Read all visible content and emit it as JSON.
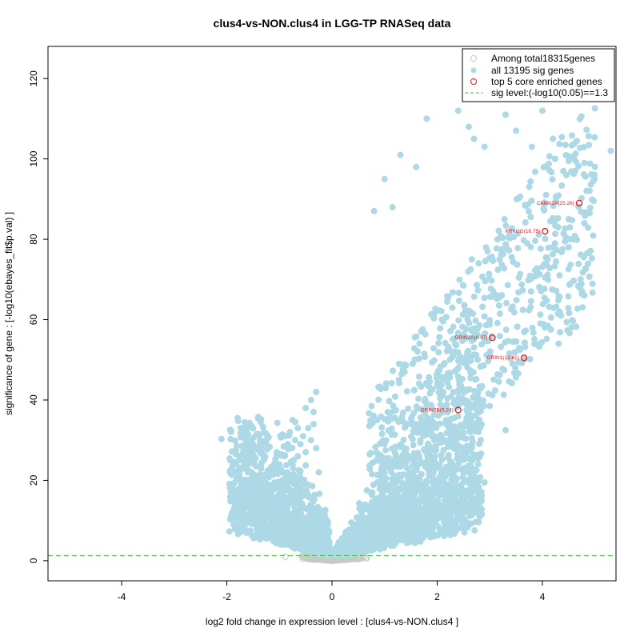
{
  "chart_data": {
    "type": "scatter",
    "title": "clus4-vs-NON.clus4 in LGG-TP RNASeq data",
    "xlabel": "log2 fold change in expression level : [clus4-vs-NON.clus4 ]",
    "ylabel": "significance of gene : [-log10(ebayes_fit$p.val) ]",
    "xlim": [
      -5.4,
      5.4
    ],
    "ylim": [
      -5,
      128
    ],
    "xticks": [
      -4,
      -2,
      0,
      2,
      4
    ],
    "yticks": [
      0,
      20,
      40,
      60,
      80,
      100,
      120
    ],
    "grid": false,
    "legend_position": "top-right",
    "legend": [
      {
        "label": "Among total18315genes",
        "marker": "open-circle",
        "color": "#c8c8c8"
      },
      {
        "label": "all 13195 sig genes",
        "marker": "filled-circle",
        "color": "#add8e6"
      },
      {
        "label": "top 5 core enriched genes",
        "marker": "open-circle",
        "color": "#e41a1c"
      },
      {
        "label": "sig level:(-log10(0.05)==1.3",
        "marker": "dashed-line",
        "color": "#33cc33"
      }
    ],
    "sig_level": 1.3,
    "colors": {
      "nonsig": "#c8c8c8",
      "sig": "#add8e6",
      "top": "#e41a1c",
      "threshold": "#33cc33"
    },
    "top_genes": [
      {
        "label": "CAMK2A(25.26)",
        "x": 4.7,
        "y": 89
      },
      {
        "label": "PRKCG(16.75)",
        "x": 4.05,
        "y": 82
      },
      {
        "label": "GRIN2A(6.37)",
        "x": 3.05,
        "y": 55.5
      },
      {
        "label": "GRIN1(12.61)",
        "x": 3.65,
        "y": 50.5
      },
      {
        "label": "GRIN2B(5.24)",
        "x": 2.4,
        "y": 37.5
      }
    ],
    "sig_points": [
      [
        -2.1,
        30.3
      ],
      [
        -1.85,
        27
      ],
      [
        -1.6,
        27.5
      ],
      [
        -1.5,
        26.5
      ],
      [
        -1.4,
        27.6
      ],
      [
        -1.3,
        25.5
      ],
      [
        -1.2,
        22
      ],
      [
        -1.05,
        27
      ],
      [
        -0.9,
        31
      ],
      [
        -0.8,
        32
      ],
      [
        -0.75,
        35
      ],
      [
        -0.7,
        34.5
      ],
      [
        -0.65,
        33
      ],
      [
        -0.5,
        38
      ],
      [
        -0.4,
        40
      ],
      [
        -0.35,
        37
      ],
      [
        -0.3,
        42
      ],
      [
        -1.9,
        12
      ],
      [
        -1.8,
        11
      ],
      [
        -1.75,
        14
      ],
      [
        -1.7,
        10
      ],
      [
        -1.6,
        16
      ],
      [
        -1.55,
        13
      ],
      [
        -1.5,
        18
      ],
      [
        -1.45,
        15
      ],
      [
        -1.4,
        20
      ],
      [
        -1.35,
        17
      ],
      [
        -1.3,
        14
      ],
      [
        -1.25,
        19
      ],
      [
        -1.2,
        12
      ],
      [
        -1.15,
        16
      ],
      [
        -1.1,
        22
      ],
      [
        -1.05,
        18
      ],
      [
        -1.0,
        24
      ],
      [
        -0.95,
        20
      ],
      [
        -0.9,
        26
      ],
      [
        -0.85,
        22
      ],
      [
        -0.8,
        28
      ],
      [
        -0.75,
        24
      ],
      [
        -0.7,
        30
      ],
      [
        -0.65,
        26
      ],
      [
        -0.6,
        29
      ],
      [
        -0.55,
        31
      ],
      [
        -0.5,
        27
      ],
      [
        -0.45,
        33
      ],
      [
        -0.4,
        30
      ],
      [
        -0.35,
        34
      ],
      [
        -0.3,
        28
      ],
      [
        -0.25,
        22
      ],
      [
        1.3,
        101
      ],
      [
        1.6,
        98
      ],
      [
        1.8,
        110
      ],
      [
        2.4,
        112
      ],
      [
        2.6,
        108
      ],
      [
        2.7,
        105
      ],
      [
        2.9,
        103
      ],
      [
        3.1,
        115
      ],
      [
        3.3,
        111
      ],
      [
        3.5,
        107
      ],
      [
        3.8,
        103
      ],
      [
        4.0,
        112
      ],
      [
        4.2,
        105
      ],
      [
        4.4,
        97
      ],
      [
        4.6,
        100
      ],
      [
        4.8,
        99
      ],
      [
        5.0,
        98
      ],
      [
        5.3,
        102
      ],
      [
        4.9,
        86.5
      ],
      [
        4.8,
        84
      ],
      [
        4.5,
        85
      ],
      [
        4.3,
        83
      ],
      [
        4.6,
        80
      ],
      [
        4.2,
        78
      ],
      [
        4.85,
        76.5
      ],
      [
        4.8,
        66
      ],
      [
        3.3,
        32.5
      ],
      [
        2.9,
        19.5
      ],
      [
        4.5,
        78
      ],
      [
        4.1,
        75
      ],
      [
        1.0,
        95
      ],
      [
        1.15,
        88
      ],
      [
        0.8,
        87
      ]
    ],
    "n_random_sig": 4200,
    "n_random_nonsig": 900
  }
}
